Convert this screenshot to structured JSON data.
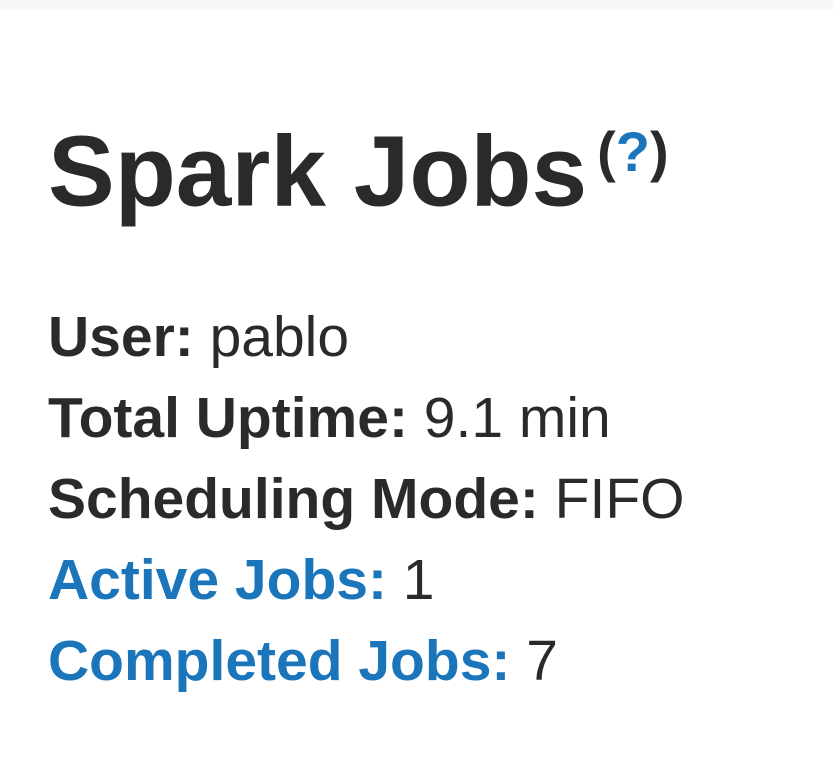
{
  "page": {
    "title": "Spark Jobs",
    "help": {
      "open_paren": "(",
      "question_mark": "?",
      "close_paren": ")"
    }
  },
  "summary": {
    "items": [
      {
        "label": "User:",
        "value": "pablo",
        "is_link": false
      },
      {
        "label": "Total Uptime:",
        "value": "9.1 min",
        "is_link": false
      },
      {
        "label": "Scheduling Mode:",
        "value": "FIFO",
        "is_link": false
      },
      {
        "label": "Active Jobs:",
        "value": "1",
        "is_link": true
      },
      {
        "label": "Completed Jobs:",
        "value": "7",
        "is_link": true
      }
    ]
  },
  "colors": {
    "link_blue": "#1b75bb",
    "text_dark": "#2a2a2a",
    "background": "#ffffff",
    "top_strip": "#f8f8f8"
  }
}
